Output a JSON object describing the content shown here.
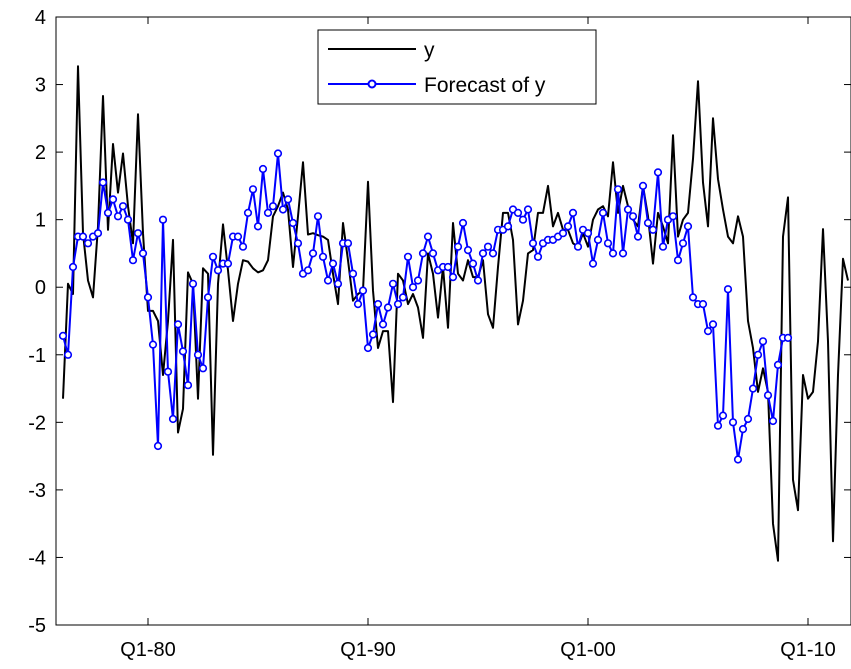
{
  "chart_data": {
    "type": "line",
    "title": "",
    "xlabel": "",
    "ylabel": "",
    "x_ticks": [
      "Q1-80",
      "Q1-90",
      "Q1-00",
      "Q1-10"
    ],
    "y_ticks": [
      4,
      3,
      2,
      1,
      0,
      -1,
      -2,
      -3,
      -4,
      -5
    ],
    "ylim": [
      -5,
      4
    ],
    "grid": false,
    "legend_position": "top-center",
    "series": [
      {
        "name": "y",
        "color": "#000000",
        "marker": "none",
        "values": [
          -1.65,
          0.05,
          -0.1,
          3.27,
          0.8,
          0.1,
          -0.15,
          0.9,
          2.83,
          0.85,
          2.12,
          1.4,
          1.98,
          1.2,
          0.65,
          2.56,
          0.8,
          -0.35,
          -0.35,
          -0.5,
          -1.3,
          -0.5,
          0.7,
          -2.15,
          -1.8,
          0.22,
          0.05,
          -1.65,
          0.28,
          0.2,
          -2.48,
          0.05,
          0.93,
          0.25,
          -0.5,
          0.05,
          0.4,
          0.38,
          0.28,
          0.22,
          0.25,
          0.4,
          1.05,
          1.2,
          1.4,
          1.15,
          0.3,
          1.05,
          1.85,
          0.78,
          0.8,
          0.77,
          0.75,
          0.7,
          0.2,
          -0.25,
          0.95,
          0.4,
          -0.2,
          -0.1,
          -0.05,
          1.56,
          -0.05,
          -0.9,
          -0.65,
          -0.65,
          -1.7,
          0.2,
          0.1,
          -0.25,
          -0.1,
          -0.3,
          -0.75,
          0.5,
          0.2,
          -0.45,
          0.3,
          -0.6,
          0.95,
          0.2,
          0.1,
          0.4,
          0.15,
          0.15,
          0.4,
          -0.4,
          -0.6,
          0.3,
          1.1,
          1.1,
          0.7,
          -0.55,
          -0.2,
          0.5,
          0.55,
          1.1,
          1.1,
          1.5,
          0.9,
          1.1,
          0.85,
          0.85,
          0.65,
          0.6,
          0.8,
          0.6,
          1.0,
          1.15,
          1.2,
          1.05,
          1.85,
          1.1,
          1.5,
          1.2,
          1.0,
          0.9,
          1.5,
          1.05,
          0.35,
          1.1,
          0.9,
          0.65,
          2.25,
          0.75,
          1.0,
          1.1,
          1.9,
          3.05,
          1.55,
          0.9,
          2.5,
          1.6,
          1.15,
          0.75,
          0.65,
          1.05,
          0.75,
          -0.5,
          -0.9,
          -1.55,
          -1.2,
          -1.55,
          -3.5,
          -4.05,
          0.75,
          1.33,
          -2.85,
          -3.3,
          -1.3,
          -1.65,
          -1.55,
          -0.8,
          0.86,
          -0.8,
          -3.76,
          -1.3,
          0.42,
          0.1
        ]
      },
      {
        "name": "Forecast of y",
        "color": "#0000ff",
        "marker": "circle",
        "values": [
          -0.72,
          -1.0,
          0.3,
          0.75,
          0.75,
          0.65,
          0.75,
          0.8,
          1.55,
          1.1,
          1.3,
          1.05,
          1.2,
          1.0,
          0.4,
          0.8,
          0.5,
          -0.15,
          -0.85,
          -2.35,
          1.0,
          -1.25,
          -1.95,
          -0.55,
          -0.95,
          -1.45,
          0.05,
          -1.0,
          -1.2,
          -0.15,
          0.45,
          0.25,
          0.35,
          0.35,
          0.75,
          0.75,
          0.6,
          1.1,
          1.45,
          0.9,
          1.75,
          1.1,
          1.2,
          1.98,
          1.15,
          1.3,
          0.95,
          0.65,
          0.2,
          0.25,
          0.5,
          1.05,
          0.45,
          0.1,
          0.35,
          0.05,
          0.65,
          0.65,
          0.2,
          -0.25,
          -0.05,
          -0.9,
          -0.7,
          -0.25,
          -0.55,
          -0.3,
          0.05,
          -0.25,
          -0.15,
          0.45,
          0.0,
          0.1,
          0.5,
          0.75,
          0.5,
          0.25,
          0.3,
          0.3,
          0.15,
          0.6,
          0.95,
          0.55,
          0.35,
          0.1,
          0.5,
          0.6,
          0.5,
          0.85,
          0.85,
          0.9,
          1.15,
          1.1,
          1.0,
          1.15,
          0.65,
          0.45,
          0.65,
          0.7,
          0.7,
          0.75,
          0.8,
          0.9,
          1.1,
          0.6,
          0.85,
          0.8,
          0.35,
          0.7,
          1.1,
          0.65,
          0.5,
          1.45,
          0.5,
          1.15,
          1.05,
          0.75,
          1.5,
          0.95,
          0.85,
          1.7,
          0.6,
          1.0,
          1.05,
          0.4,
          0.65,
          0.9,
          -0.15,
          -0.25,
          -0.25,
          -0.65,
          -0.55,
          -2.05,
          -1.9,
          -0.03,
          -2.0,
          -2.55,
          -2.1,
          -1.95,
          -1.5,
          -1.0,
          -0.8,
          -1.6,
          -1.98,
          -1.15,
          -0.75,
          -0.75
        ]
      }
    ]
  }
}
